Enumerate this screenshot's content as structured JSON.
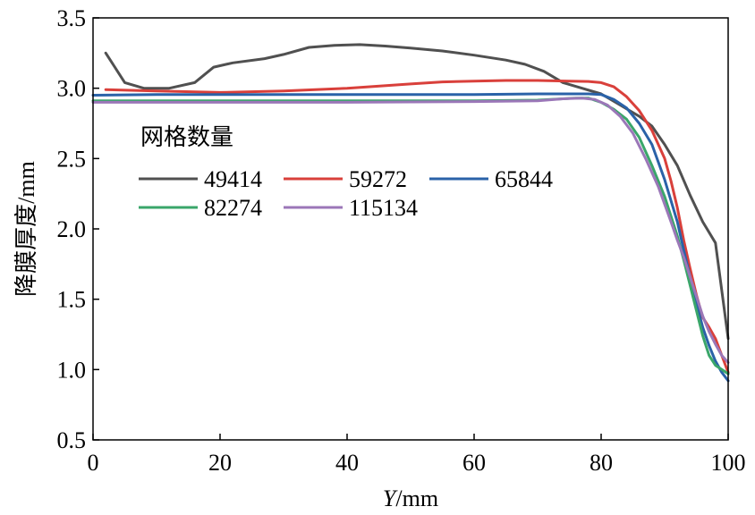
{
  "chart_data": {
    "type": "line",
    "xlabel": "Y/mm",
    "ylabel": "降膜厚度/mm",
    "xlim": [
      0,
      100
    ],
    "ylim": [
      0.5,
      3.5
    ],
    "xticks": [
      0,
      20,
      40,
      60,
      80,
      100
    ],
    "yticks": [
      0.5,
      1.0,
      1.5,
      2.0,
      2.5,
      3.0,
      3.5
    ],
    "xtick_labels": [
      "0",
      "20",
      "40",
      "60",
      "80",
      "100"
    ],
    "ytick_labels": [
      "0.5",
      "1.0",
      "1.5",
      "2.0",
      "2.5",
      "3.0",
      "3.5"
    ],
    "grid": false,
    "legend": {
      "title": "网格数量",
      "placement": "top-left"
    },
    "series": [
      {
        "name": "49414",
        "color": "#505050",
        "points": [
          [
            2,
            3.25
          ],
          [
            5,
            3.04
          ],
          [
            8,
            3.0
          ],
          [
            12,
            3.0
          ],
          [
            16,
            3.04
          ],
          [
            19,
            3.15
          ],
          [
            22,
            3.18
          ],
          [
            27,
            3.21
          ],
          [
            30,
            3.24
          ],
          [
            34,
            3.29
          ],
          [
            38,
            3.305
          ],
          [
            42,
            3.31
          ],
          [
            46,
            3.3
          ],
          [
            50,
            3.285
          ],
          [
            55,
            3.265
          ],
          [
            60,
            3.235
          ],
          [
            65,
            3.2
          ],
          [
            68,
            3.17
          ],
          [
            71,
            3.12
          ],
          [
            74,
            3.04
          ],
          [
            77,
            3.0
          ],
          [
            80,
            2.96
          ],
          [
            83,
            2.88
          ],
          [
            86,
            2.8
          ],
          [
            88,
            2.73
          ],
          [
            90,
            2.6
          ],
          [
            92,
            2.45
          ],
          [
            94,
            2.24
          ],
          [
            96,
            2.05
          ],
          [
            98,
            1.9
          ],
          [
            100,
            1.22
          ]
        ]
      },
      {
        "name": "59272",
        "color": "#d9403b",
        "points": [
          [
            2,
            2.99
          ],
          [
            10,
            2.98
          ],
          [
            20,
            2.97
          ],
          [
            30,
            2.98
          ],
          [
            40,
            3.0
          ],
          [
            50,
            3.03
          ],
          [
            55,
            3.045
          ],
          [
            60,
            3.05
          ],
          [
            65,
            3.055
          ],
          [
            70,
            3.055
          ],
          [
            75,
            3.05
          ],
          [
            78,
            3.048
          ],
          [
            80,
            3.04
          ],
          [
            82,
            3.01
          ],
          [
            84,
            2.94
          ],
          [
            86,
            2.84
          ],
          [
            88,
            2.7
          ],
          [
            90,
            2.5
          ],
          [
            91,
            2.34
          ],
          [
            92,
            2.15
          ],
          [
            93,
            1.92
          ],
          [
            94,
            1.72
          ],
          [
            95,
            1.53
          ],
          [
            96,
            1.37
          ],
          [
            97,
            1.3
          ],
          [
            98,
            1.22
          ],
          [
            99,
            1.1
          ],
          [
            100,
            0.98
          ]
        ]
      },
      {
        "name": "65844",
        "color": "#2a62a8",
        "points": [
          [
            0,
            2.95
          ],
          [
            10,
            2.955
          ],
          [
            20,
            2.955
          ],
          [
            30,
            2.955
          ],
          [
            40,
            2.955
          ],
          [
            50,
            2.955
          ],
          [
            60,
            2.955
          ],
          [
            70,
            2.96
          ],
          [
            78,
            2.96
          ],
          [
            80,
            2.955
          ],
          [
            82,
            2.92
          ],
          [
            84,
            2.86
          ],
          [
            86,
            2.75
          ],
          [
            88,
            2.6
          ],
          [
            90,
            2.35
          ],
          [
            92,
            2.05
          ],
          [
            93,
            1.85
          ],
          [
            94,
            1.66
          ],
          [
            95,
            1.47
          ],
          [
            96,
            1.3
          ],
          [
            97,
            1.17
          ],
          [
            98,
            1.06
          ],
          [
            99,
            0.98
          ],
          [
            100,
            0.92
          ]
        ]
      },
      {
        "name": "82274",
        "color": "#3aa66a",
        "points": [
          [
            0,
            2.91
          ],
          [
            20,
            2.91
          ],
          [
            40,
            2.91
          ],
          [
            60,
            2.91
          ],
          [
            70,
            2.915
          ],
          [
            76,
            2.93
          ],
          [
            78,
            2.93
          ],
          [
            80,
            2.9
          ],
          [
            82,
            2.85
          ],
          [
            84,
            2.78
          ],
          [
            86,
            2.65
          ],
          [
            88,
            2.45
          ],
          [
            90,
            2.23
          ],
          [
            92,
            1.95
          ],
          [
            93,
            1.78
          ],
          [
            94,
            1.6
          ],
          [
            95,
            1.42
          ],
          [
            96,
            1.24
          ],
          [
            97,
            1.1
          ],
          [
            98,
            1.03
          ],
          [
            99,
            1.0
          ],
          [
            100,
            0.97
          ]
        ]
      },
      {
        "name": "115134",
        "color": "#9b77b8",
        "points": [
          [
            0,
            2.9
          ],
          [
            20,
            2.9
          ],
          [
            40,
            2.9
          ],
          [
            60,
            2.905
          ],
          [
            70,
            2.91
          ],
          [
            74,
            2.925
          ],
          [
            77,
            2.93
          ],
          [
            79,
            2.92
          ],
          [
            81,
            2.88
          ],
          [
            83,
            2.8
          ],
          [
            85,
            2.68
          ],
          [
            87,
            2.5
          ],
          [
            89,
            2.3
          ],
          [
            91,
            2.05
          ],
          [
            92,
            1.92
          ],
          [
            93,
            1.8
          ],
          [
            94,
            1.66
          ],
          [
            95,
            1.52
          ],
          [
            96,
            1.38
          ],
          [
            97,
            1.27
          ],
          [
            98,
            1.18
          ],
          [
            99,
            1.1
          ],
          [
            100,
            1.05
          ]
        ]
      }
    ]
  }
}
